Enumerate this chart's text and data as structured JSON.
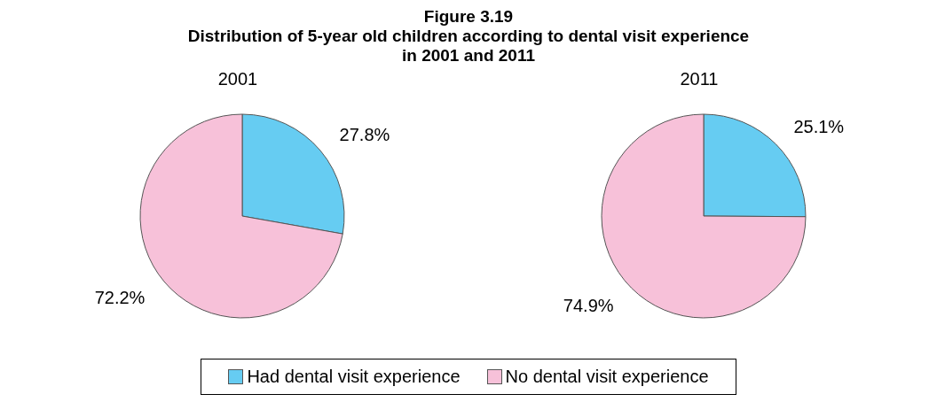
{
  "chart_data": [
    {
      "type": "pie",
      "title": "Figure 3.19\nDistribution of 5-year old children according to dental visit experience\nin 2001 and 2011",
      "subtitle": "2001",
      "categories": [
        "Had dental visit experience",
        "No dental visit experience"
      ],
      "values": [
        27.8,
        72.2
      ],
      "colors": [
        "#66ccf2",
        "#f7c1d9"
      ],
      "value_labels": [
        "27.8%",
        "72.2%"
      ],
      "legend": "bottom"
    },
    {
      "type": "pie",
      "subtitle": "2011",
      "categories": [
        null,
        null
      ],
      "values": [
        25.1,
        74.9
      ],
      "colors": [
        "#66ccf2",
        "#f7c1d9"
      ],
      "value_labels": [
        "25.1%",
        "74.9%"
      ]
    }
  ]
}
